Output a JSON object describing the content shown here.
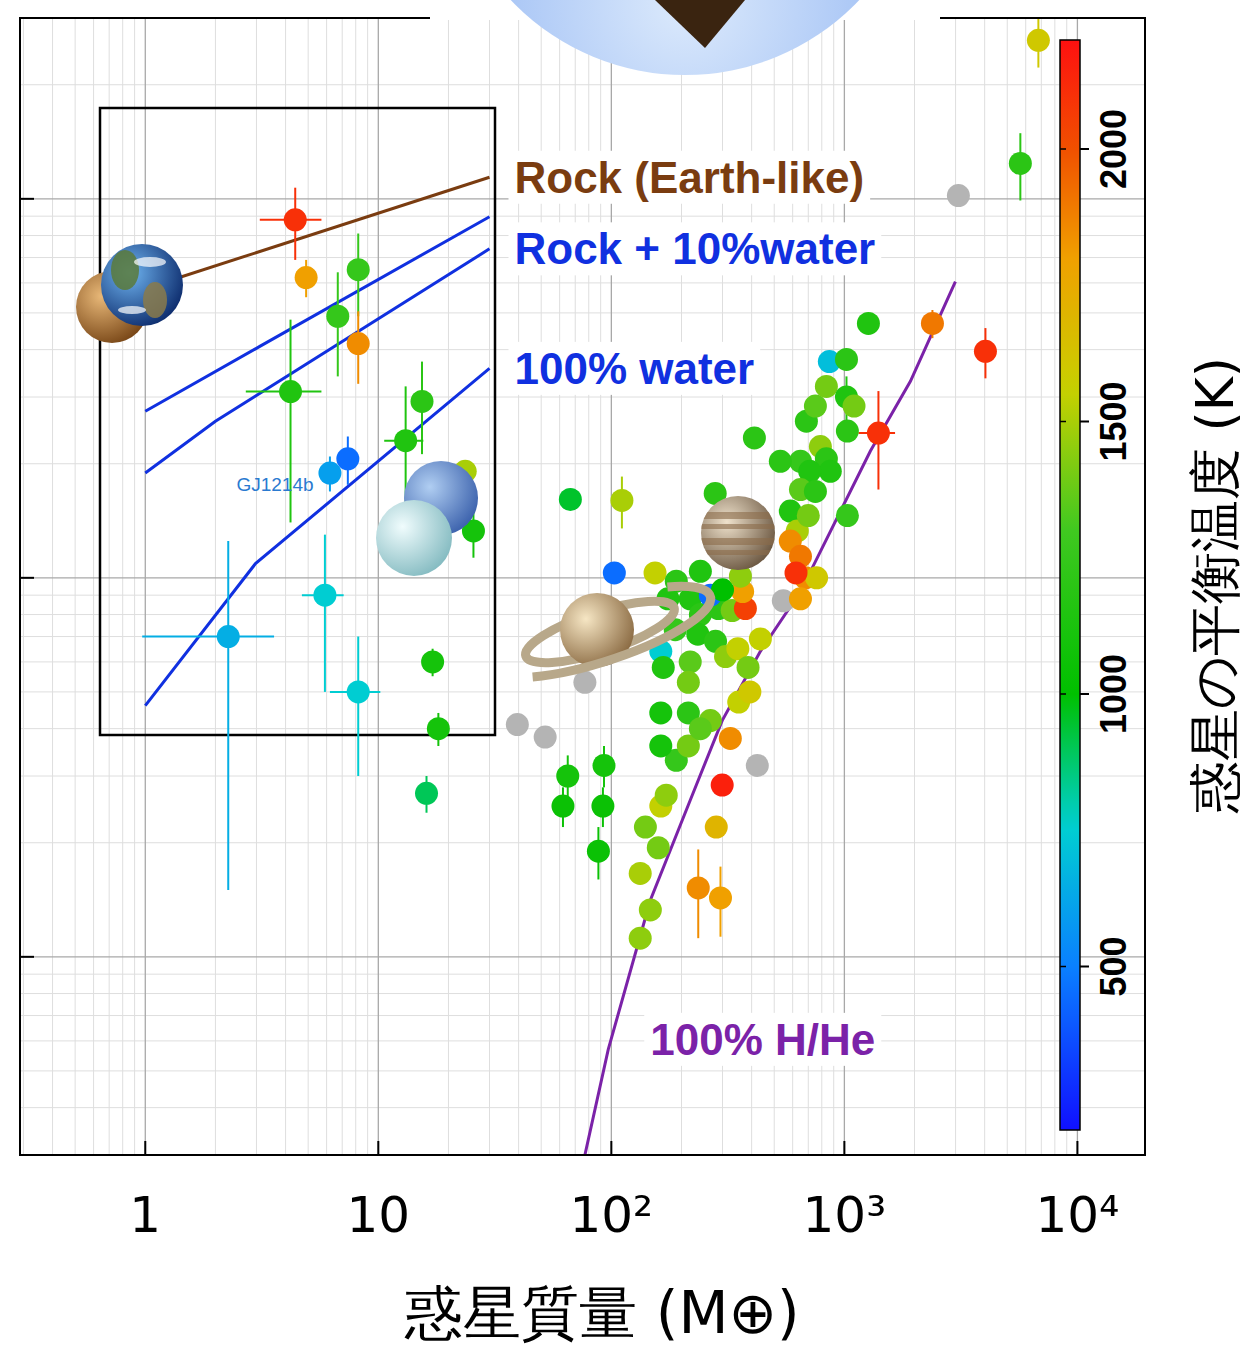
{
  "chart_data": {
    "type": "scatter",
    "xlabel": "惑星質量 (M⊕)",
    "log": true,
    "grid": true,
    "tick_labels": "x",
    "xlim": [
      0.29,
      19500
    ],
    "ylim": [
      0.03,
      30
    ],
    "xticks": [
      1,
      10,
      {
        "value": 100,
        "label": "10²"
      },
      {
        "value": 1000,
        "label": "10³"
      },
      {
        "value": 10000,
        "label": "10⁴"
      }
    ],
    "yticks": [
      0.1,
      1,
      10
    ],
    "colorbar": {
      "title": "惑星の平衡温度 (K)",
      "range": [
        200,
        2200
      ],
      "ticks": [
        500,
        1000,
        1500,
        2000
      ]
    },
    "points": {
      "x": [
        4.4,
        4.9,
        8.2,
        6.7,
        8.2,
        4.2,
        15.4,
        13.1,
        7.4,
        6.2,
        23.6,
        25.6,
        5.9,
        2.27,
        8.2,
        17.1,
        18.1,
        16.1,
        39.5,
        52,
        66.7,
        111,
        103,
        77,
        65,
        62,
        93,
        92,
        88,
        140,
        133,
        147,
        133,
        159,
        163,
        172,
        236,
        294,
        282,
        324,
        299,
        423,
        190,
        214,
        154,
        190,
        218,
        175,
        241,
        288,
        330,
        266,
        376,
        366,
        163,
        167,
        218,
        214,
        188,
        235,
        280,
        309,
        349,
        386,
        436,
        352,
        266,
        163,
        163,
        214,
        241,
        393,
        300,
        358,
        241,
        411,
        586,
        648,
        687,
        751,
        837,
        862,
        1021,
        1021,
        1268,
        1100,
        1030,
        1030,
        789,
        837,
        870,
        710,
        648,
        751,
        628,
        700,
        586,
        648,
        680,
        760,
        620,
        547,
        648,
        1400,
        2387,
        4030,
        3085,
        5690,
        6800,
        279,
        531
      ],
      "values": [
        8.8,
        6.2,
        6.5,
        4.9,
        4.15,
        3.1,
        2.92,
        2.3,
        2.06,
        1.89,
        1.91,
        1.33,
        0.9,
        0.7,
        0.5,
        0.6,
        0.4,
        0.27,
        0.41,
        0.38,
        1.61,
        1.6,
        1.03,
        0.53,
        0.3,
        0.25,
        0.32,
        0.25,
        0.19,
        0.22,
        0.166,
        0.133,
        0.112,
        0.194,
        0.25,
        0.267,
        0.152,
        0.143,
        0.22,
        0.377,
        0.284,
        0.32,
        0.33,
        0.36,
        1.03,
        0.98,
        0.88,
        0.88,
        0.8,
        0.83,
        0.82,
        0.9,
        0.83,
        0.92,
        0.64,
        0.58,
        0.6,
        0.53,
        0.73,
        0.71,
        0.68,
        0.62,
        0.65,
        0.58,
        0.69,
        0.47,
        0.42,
        0.44,
        0.36,
        0.44,
        0.4,
        0.5,
        0.93,
        1.01,
        1.04,
        2.34,
        1.5,
        2.03,
        2.59,
        2.84,
        3.2,
        3.72,
        3.77,
        3.0,
        4.69,
        2.84,
        2.44,
        1.46,
        2.22,
        2.06,
        1.91,
        1.91,
        1.71,
        1.69,
        1.33,
        1.46,
        1.25,
        1.14,
        1.0,
        1.0,
        1.03,
        0.87,
        0.88,
        2.41,
        4.69,
        3.96,
        10.2,
        12.4,
        26.2,
        1.67,
        2.03
      ],
      "temperature": [
        2100,
        1800,
        1250,
        1250,
        1850,
        1150,
        1200,
        1150,
        450,
        600,
        1500,
        1100,
        750,
        650,
        750,
        1100,
        1100,
        900,
        null,
        null,
        950,
        1500,
        450,
        null,
        1100,
        1050,
        1100,
        1050,
        1050,
        1400,
        1500,
        1450,
        1450,
        1400,
        1550,
        1450,
        1850,
        1800,
        1700,
        1850,
        2150,
        null,
        1250,
        1400,
        1550,
        1200,
        1150,
        1150,
        1200,
        1200,
        1400,
        450,
        2050,
        1800,
        750,
        1150,
        1350,
        1400,
        1250,
        1150,
        1200,
        1450,
        1550,
        1400,
        1550,
        1550,
        1400,
        1100,
        1100,
        1200,
        1350,
        1600,
        1000,
        1450,
        1150,
        1200,
        1150,
        1250,
        1200,
        1350,
        1400,
        700,
        1200,
        1150,
        1150,
        1400,
        1200,
        1250,
        1450,
        1200,
        1150,
        1150,
        1350,
        1200,
        1500,
        1400,
        1850,
        1900,
        1850,
        1600,
        2100,
        null,
        1800,
        2100,
        1900,
        2100,
        null,
        1200,
        1600,
        1200,
        1200
      ],
      "y_err": [
        1.9,
        0.7,
        1.6,
        1.5,
        0.9,
        1.7,
        0.8,
        0.9,
        0.3,
        0.2,
        null,
        0.2,
        0.4,
        0.55,
        0.2,
        0.05,
        0.04,
        0.03,
        null,
        null,
        null,
        0.25,
        null,
        null,
        0.04,
        0.03,
        0.04,
        0.03,
        0.03,
        null,
        null,
        null,
        null,
        null,
        null,
        null,
        0.04,
        0.03,
        null,
        null,
        null,
        null,
        null,
        null,
        null,
        null,
        null,
        null,
        null,
        null,
        null,
        null,
        null,
        null,
        null,
        null,
        null,
        null,
        null,
        null,
        null,
        null,
        null,
        null,
        null,
        null,
        null,
        null,
        null,
        null,
        null,
        null,
        null,
        null,
        null,
        null,
        null,
        null,
        null,
        null,
        null,
        null,
        null,
        0.4,
        null,
        null,
        null,
        null,
        null,
        null,
        null,
        null,
        null,
        null,
        null,
        null,
        null,
        null,
        null,
        null,
        null,
        null,
        null,
        0.7,
        0.4,
        0.6,
        null,
        2.5,
        4,
        null,
        null
      ],
      "x_err": [
        1.3,
        null,
        null,
        null,
        null,
        1.5,
        null,
        2.5,
        null,
        null,
        null,
        null,
        1.2,
        1.3,
        2.0,
        null,
        null,
        null,
        null,
        null,
        null,
        null,
        null,
        null,
        null,
        null,
        null,
        null,
        null,
        null,
        null,
        null,
        null,
        null,
        null,
        null,
        null,
        null,
        null,
        null,
        null,
        null,
        null,
        null,
        null,
        null,
        null,
        null,
        null,
        null,
        null,
        null,
        null,
        null,
        null,
        null,
        null,
        null,
        null,
        null,
        null,
        null,
        null,
        null,
        null,
        null,
        null,
        null,
        null,
        null,
        null,
        null,
        null,
        null,
        null,
        null,
        null,
        null,
        null,
        null,
        null,
        null,
        null,
        null,
        null,
        null,
        null,
        null,
        null,
        null,
        null,
        null,
        null,
        null,
        null,
        null,
        null,
        null,
        null,
        null,
        null,
        null,
        null,
        250,
        null,
        null,
        null,
        null,
        null,
        null,
        null
      ]
    },
    "curves": [
      {
        "label": "Rock (Earth-like)",
        "color": "#7a3c10",
        "x": [
          1,
          30
        ],
        "values": [
          5.8,
          11.4
        ]
      },
      {
        "color": "#1030e0",
        "x": [
          1,
          3.1,
          30
        ],
        "values": [
          2.75,
          4.08,
          8.97
        ]
      },
      {
        "label": "Rock + 10%water",
        "color": "#1030e0",
        "x": [
          1,
          2.0,
          30
        ],
        "values": [
          1.89,
          2.59,
          7.38
        ]
      },
      {
        "label": "100% water",
        "color": "#1030e0",
        "x": [
          1,
          2.97,
          30
        ],
        "values": [
          0.46,
          1.09,
          3.57
        ]
      },
      {
        "label": "100% H/He",
        "color": "#7b22a8",
        "x": [
          77,
          97,
          147,
          218,
          299,
          436,
          648,
          1293,
          1920,
          2995
        ],
        "values": [
          0.03,
          0.057,
          0.141,
          0.259,
          0.42,
          0.64,
          0.92,
          2.16,
          3.3,
          6.05
        ]
      }
    ],
    "annotations": [
      {
        "text": "GJ1214b"
      }
    ]
  }
}
